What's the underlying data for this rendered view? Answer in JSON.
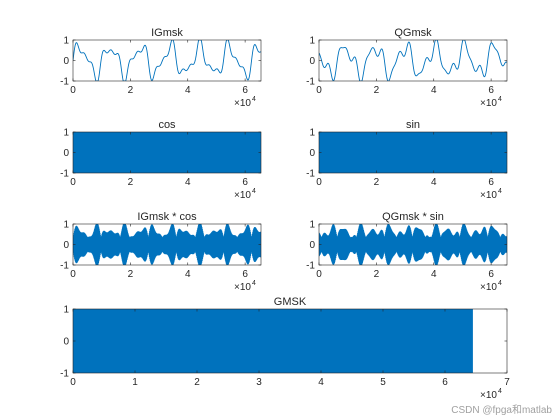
{
  "figure": {
    "watermark": "CSDN @fpga和matlab",
    "series_color": "#0072BD"
  },
  "chart_data": [
    {
      "type": "line",
      "title": "IGmsk",
      "xlim": [
        0,
        65536
      ],
      "ylim": [
        -1,
        1
      ],
      "xticks": [
        0,
        2,
        4,
        6
      ],
      "yticks": [
        -1,
        0,
        1
      ],
      "x_scale_label": "×10",
      "x_scale_exp": "4",
      "signal": "baseband",
      "approx_peak_count": 14,
      "grid": false
    },
    {
      "type": "line",
      "title": "QGmsk",
      "xlim": [
        0,
        65536
      ],
      "ylim": [
        -1,
        1
      ],
      "xticks": [
        0,
        2,
        4,
        6
      ],
      "yticks": [
        -1,
        0,
        1
      ],
      "x_scale_label": "×10",
      "x_scale_exp": "4",
      "signal": "baseband",
      "approx_peak_count": 14,
      "grid": false
    },
    {
      "type": "line",
      "title": "cos",
      "xlim": [
        0,
        65536
      ],
      "ylim": [
        -1,
        1
      ],
      "xticks": [
        0,
        2,
        4,
        6
      ],
      "yticks": [
        -1,
        0,
        1
      ],
      "x_scale_label": "×10",
      "x_scale_exp": "4",
      "signal": "carrier",
      "amplitude": 1,
      "data_end": 65536,
      "grid": false
    },
    {
      "type": "line",
      "title": "sin",
      "xlim": [
        0,
        65536
      ],
      "ylim": [
        -1,
        1
      ],
      "xticks": [
        0,
        2,
        4,
        6
      ],
      "yticks": [
        -1,
        0,
        1
      ],
      "x_scale_label": "×10",
      "x_scale_exp": "4",
      "signal": "carrier",
      "amplitude": 1,
      "data_end": 65536,
      "grid": false
    },
    {
      "type": "line",
      "title": "IGmsk * cos",
      "xlim": [
        0,
        65536
      ],
      "ylim": [
        -1,
        1
      ],
      "xticks": [
        0,
        2,
        4,
        6
      ],
      "yticks": [
        -1,
        0,
        1
      ],
      "x_scale_label": "×10",
      "x_scale_exp": "4",
      "signal": "modulated",
      "grid": false
    },
    {
      "type": "line",
      "title": "QGmsk * sin",
      "xlim": [
        0,
        65536
      ],
      "ylim": [
        -1,
        1
      ],
      "xticks": [
        0,
        2,
        4,
        6
      ],
      "yticks": [
        -1,
        0,
        1
      ],
      "x_scale_label": "×10",
      "x_scale_exp": "4",
      "signal": "modulated",
      "grid": false
    },
    {
      "type": "line",
      "title": "GMSK",
      "xlim": [
        0,
        70000
      ],
      "ylim": [
        -1,
        1
      ],
      "xticks": [
        0,
        1,
        2,
        3,
        4,
        5,
        6,
        7
      ],
      "yticks": [
        -1,
        0,
        1
      ],
      "x_scale_label": "×10",
      "x_scale_exp": "4",
      "signal": "carrier",
      "amplitude": 1,
      "data_end": 64500,
      "grid": false
    }
  ]
}
